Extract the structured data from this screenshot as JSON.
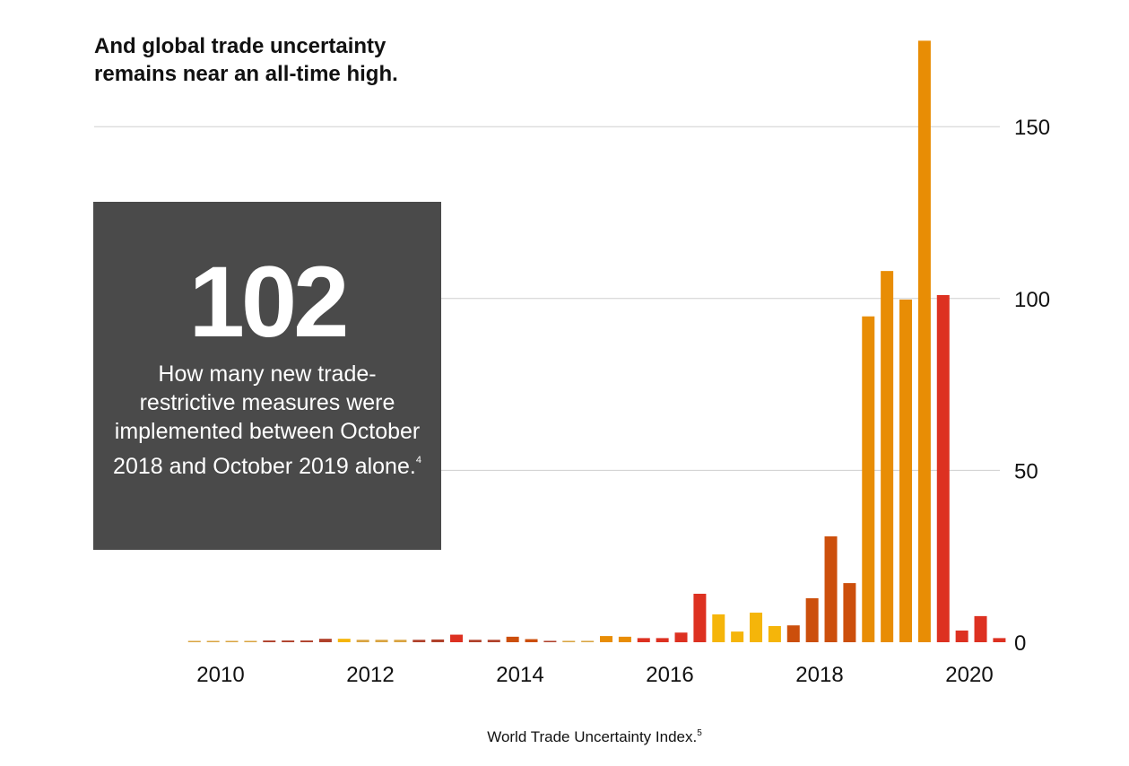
{
  "title_lines": [
    "And global trade uncertainty",
    "remains near an all-time high."
  ],
  "callout": {
    "number": "102",
    "description": "How many new trade-restrictive measures were implemented between October 2018 and October 2019 alone.",
    "footnote": "4",
    "background_color": "#4a4a4a"
  },
  "caption": {
    "text": "World Trade Uncertainty Index.",
    "footnote": "5"
  },
  "chart_data": {
    "type": "bar",
    "title": "And global trade uncertainty remains near an all-time high.",
    "xlabel": "",
    "ylabel": "World Trade Uncertainty Index",
    "ylim": [
      0,
      175
    ],
    "y_ticks": [
      0,
      50,
      100,
      150
    ],
    "y_axis_side": "right",
    "x_ticks": [
      "2010",
      "2012",
      "2014",
      "2016",
      "2018",
      "2020"
    ],
    "x_tick_values": [
      2010,
      2012,
      2014,
      2016,
      2018,
      2020
    ],
    "grid": true,
    "frequency": "quarterly",
    "x_start": 2009.65,
    "x_step": 0.25,
    "colors": {
      "yellow": "#f5b50a",
      "orange": "#e88d05",
      "burnt": "#cc4f0c",
      "red": "#dd3121",
      "tan": "#d9a441",
      "darkred": "#b0412b"
    },
    "values": [
      0.3,
      0.3,
      0.3,
      0.3,
      0.5,
      0.5,
      0.5,
      1.0,
      1.0,
      0.7,
      0.7,
      0.7,
      0.7,
      0.8,
      2.2,
      0.7,
      0.7,
      1.6,
      0.9,
      0.4,
      0.4,
      0.4,
      1.8,
      1.6,
      1.2,
      1.2,
      2.8,
      14.1,
      8.1,
      3.1,
      8.6,
      4.7,
      4.9,
      12.8,
      30.8,
      17.2,
      94.8,
      108.0,
      99.7,
      175.0,
      101.0,
      3.4,
      7.6,
      1.2
    ],
    "bar_colors": [
      "tan",
      "tan",
      "tan",
      "tan",
      "darkred",
      "darkred",
      "darkred",
      "darkred",
      "yellow",
      "tan",
      "tan",
      "tan",
      "darkred",
      "darkred",
      "red",
      "darkred",
      "darkred",
      "burnt",
      "burnt",
      "darkred",
      "tan",
      "tan",
      "orange",
      "orange",
      "red",
      "red",
      "red",
      "red",
      "yellow",
      "yellow",
      "yellow",
      "yellow",
      "burnt",
      "burnt",
      "burnt",
      "burnt",
      "orange",
      "orange",
      "orange",
      "orange",
      "red",
      "red",
      "red",
      "red"
    ]
  }
}
